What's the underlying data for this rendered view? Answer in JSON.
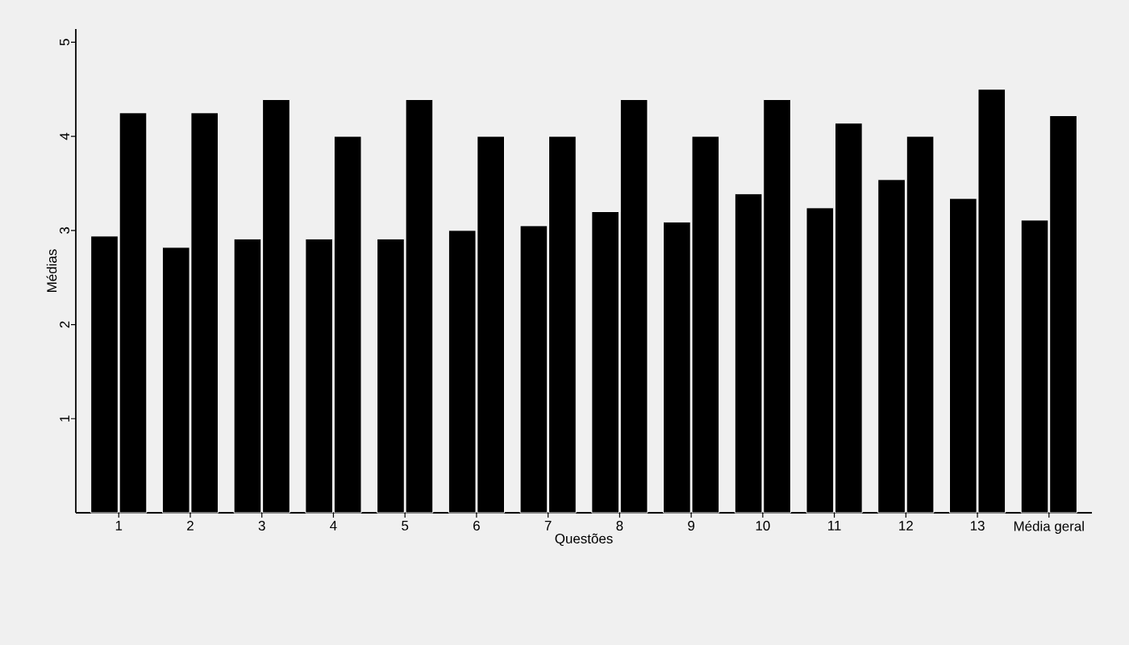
{
  "chart_data": {
    "type": "bar",
    "xlabel": "Questões",
    "ylabel": "Médias",
    "categories": [
      "1",
      "2",
      "3",
      "4",
      "5",
      "6",
      "7",
      "8",
      "9",
      "10",
      "11",
      "12",
      "13",
      "Média geral"
    ],
    "series": [
      {
        "color": "#000000",
        "values": [
          2.94,
          2.82,
          2.91,
          2.91,
          2.91,
          3.0,
          3.05,
          3.2,
          3.09,
          3.39,
          3.24,
          3.54,
          3.34,
          3.11
        ]
      },
      {
        "color": "#000000",
        "values": [
          4.25,
          4.25,
          4.39,
          4.0,
          4.39,
          4.0,
          4.0,
          4.39,
          4.0,
          4.39,
          4.14,
          4.0,
          4.5,
          4.22
        ]
      }
    ],
    "ylim": [
      0,
      5.14
    ],
    "yticks": [
      1,
      2,
      3,
      4,
      5
    ]
  }
}
